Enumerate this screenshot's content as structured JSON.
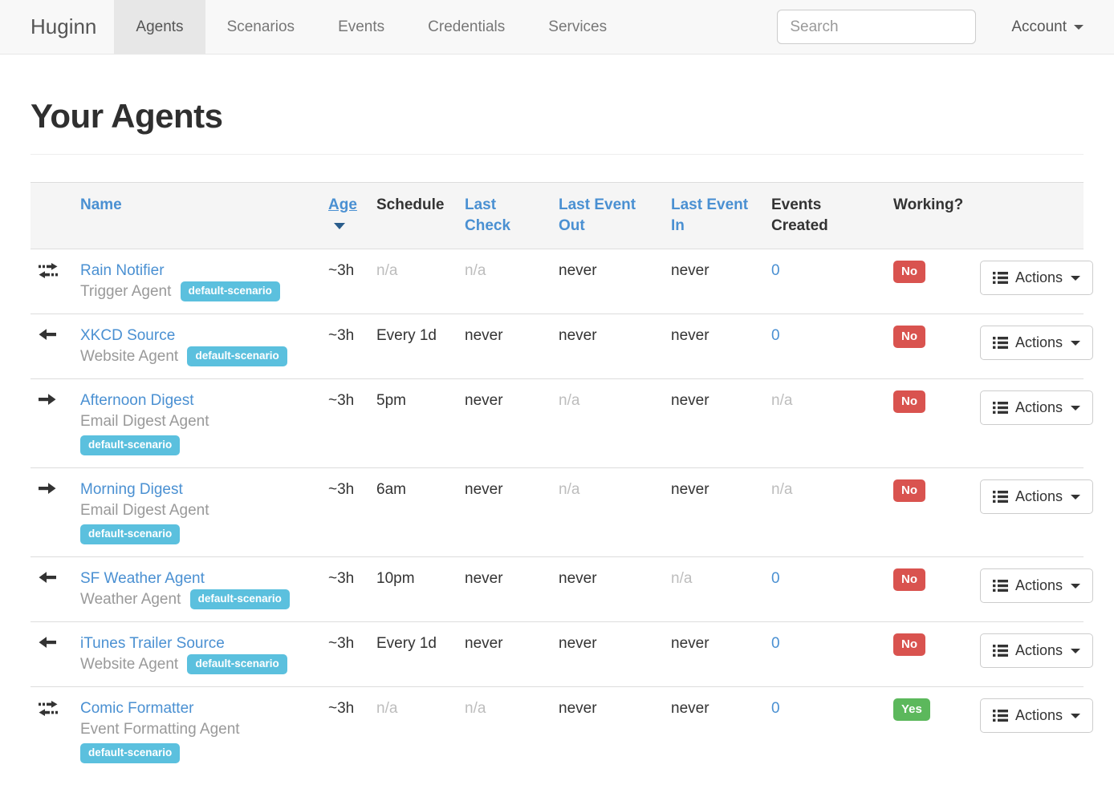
{
  "navbar": {
    "brand": "Huginn",
    "tabs": [
      {
        "label": "Agents",
        "active": true
      },
      {
        "label": "Scenarios",
        "active": false
      },
      {
        "label": "Events",
        "active": false
      },
      {
        "label": "Credentials",
        "active": false
      },
      {
        "label": "Services",
        "active": false
      }
    ],
    "search_placeholder": "Search",
    "account_label": "Account"
  },
  "page": {
    "title": "Your Agents"
  },
  "colors": {
    "link_blue": "#4a90d2",
    "badge_info": "#5bc0de",
    "badge_danger": "#d9534f",
    "badge_success": "#5cb85c",
    "muted_text": "#bdbdbd",
    "navbar_bg": "#f8f8f8",
    "active_tab_bg": "#e7e7e7",
    "thead_bg": "#f5f5f5",
    "row_border": "#dddddd"
  },
  "table": {
    "headers": [
      {
        "label": "",
        "kind": "plain"
      },
      {
        "label": "Name",
        "kind": "link"
      },
      {
        "label": "Age",
        "kind": "link",
        "sorted": "desc"
      },
      {
        "label": "Schedule",
        "kind": "plain"
      },
      {
        "label": "Last Check",
        "kind": "link"
      },
      {
        "label": "Last Event Out",
        "kind": "link"
      },
      {
        "label": "Last Event In",
        "kind": "link"
      },
      {
        "label": "Events Created",
        "kind": "plain"
      },
      {
        "label": "Working?",
        "kind": "plain"
      },
      {
        "label": "",
        "kind": "plain"
      }
    ],
    "rows": [
      {
        "icon": "exchange-icon",
        "name": "Rain Notifier",
        "type": "Trigger Agent",
        "badge": "default-scenario",
        "badge_wraps": false,
        "age": {
          "text": "~3h",
          "kind": "normal"
        },
        "schedule": {
          "text": "n/a",
          "kind": "muted"
        },
        "last_check": {
          "text": "n/a",
          "kind": "muted"
        },
        "last_event_out": {
          "text": "never",
          "kind": "normal"
        },
        "last_event_in": {
          "text": "never",
          "kind": "normal"
        },
        "events_created": {
          "text": "0",
          "kind": "link"
        },
        "working": {
          "text": "No",
          "kind": "danger"
        },
        "actions_label": "Actions"
      },
      {
        "icon": "arrow-left-icon",
        "name": "XKCD Source",
        "type": "Website Agent",
        "badge": "default-scenario",
        "badge_wraps": false,
        "age": {
          "text": "~3h",
          "kind": "normal"
        },
        "schedule": {
          "text": "Every 1d",
          "kind": "normal"
        },
        "last_check": {
          "text": "never",
          "kind": "normal"
        },
        "last_event_out": {
          "text": "never",
          "kind": "normal"
        },
        "last_event_in": {
          "text": "never",
          "kind": "normal"
        },
        "events_created": {
          "text": "0",
          "kind": "link"
        },
        "working": {
          "text": "No",
          "kind": "danger"
        },
        "actions_label": "Actions"
      },
      {
        "icon": "arrow-right-icon",
        "name": "Afternoon Digest",
        "type": "Email Digest Agent",
        "badge": "default-scenario",
        "badge_wraps": true,
        "age": {
          "text": "~3h",
          "kind": "normal"
        },
        "schedule": {
          "text": "5pm",
          "kind": "normal"
        },
        "last_check": {
          "text": "never",
          "kind": "normal"
        },
        "last_event_out": {
          "text": "n/a",
          "kind": "muted"
        },
        "last_event_in": {
          "text": "never",
          "kind": "normal"
        },
        "events_created": {
          "text": "n/a",
          "kind": "muted"
        },
        "working": {
          "text": "No",
          "kind": "danger"
        },
        "actions_label": "Actions"
      },
      {
        "icon": "arrow-right-icon",
        "name": "Morning Digest",
        "type": "Email Digest Agent",
        "badge": "default-scenario",
        "badge_wraps": true,
        "age": {
          "text": "~3h",
          "kind": "normal"
        },
        "schedule": {
          "text": "6am",
          "kind": "normal"
        },
        "last_check": {
          "text": "never",
          "kind": "normal"
        },
        "last_event_out": {
          "text": "n/a",
          "kind": "muted"
        },
        "last_event_in": {
          "text": "never",
          "kind": "normal"
        },
        "events_created": {
          "text": "n/a",
          "kind": "muted"
        },
        "working": {
          "text": "No",
          "kind": "danger"
        },
        "actions_label": "Actions"
      },
      {
        "icon": "arrow-left-icon",
        "name": "SF Weather Agent",
        "type": "Weather Agent",
        "badge": "default-scenario",
        "badge_wraps": false,
        "age": {
          "text": "~3h",
          "kind": "normal"
        },
        "schedule": {
          "text": "10pm",
          "kind": "normal"
        },
        "last_check": {
          "text": "never",
          "kind": "normal"
        },
        "last_event_out": {
          "text": "never",
          "kind": "normal"
        },
        "last_event_in": {
          "text": "n/a",
          "kind": "muted"
        },
        "events_created": {
          "text": "0",
          "kind": "link"
        },
        "working": {
          "text": "No",
          "kind": "danger"
        },
        "actions_label": "Actions"
      },
      {
        "icon": "arrow-left-icon",
        "name": "iTunes Trailer Source",
        "type": "Website Agent",
        "badge": "default-scenario",
        "badge_wraps": false,
        "age": {
          "text": "~3h",
          "kind": "normal"
        },
        "schedule": {
          "text": "Every 1d",
          "kind": "normal"
        },
        "last_check": {
          "text": "never",
          "kind": "normal"
        },
        "last_event_out": {
          "text": "never",
          "kind": "normal"
        },
        "last_event_in": {
          "text": "never",
          "kind": "normal"
        },
        "events_created": {
          "text": "0",
          "kind": "link"
        },
        "working": {
          "text": "No",
          "kind": "danger"
        },
        "actions_label": "Actions"
      },
      {
        "icon": "exchange-icon",
        "name": "Comic Formatter",
        "type": "Event Formatting Agent",
        "badge": "default-scenario",
        "badge_wraps": true,
        "age": {
          "text": "~3h",
          "kind": "normal"
        },
        "schedule": {
          "text": "n/a",
          "kind": "muted"
        },
        "last_check": {
          "text": "n/a",
          "kind": "muted"
        },
        "last_event_out": {
          "text": "never",
          "kind": "normal"
        },
        "last_event_in": {
          "text": "never",
          "kind": "normal"
        },
        "events_created": {
          "text": "0",
          "kind": "link"
        },
        "working": {
          "text": "Yes",
          "kind": "success"
        },
        "actions_label": "Actions"
      }
    ]
  }
}
